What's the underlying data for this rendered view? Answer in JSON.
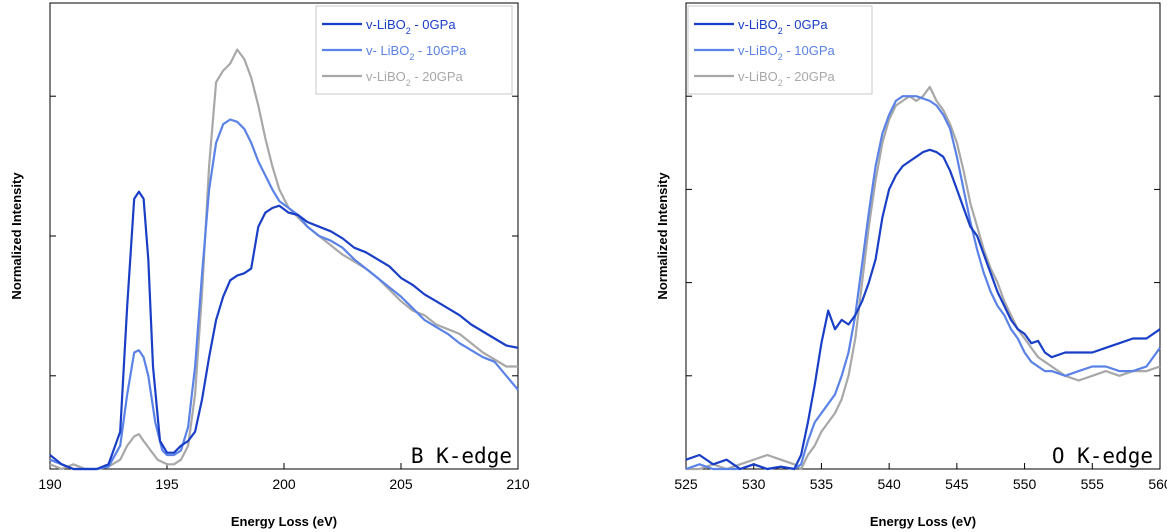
{
  "chart_data": [
    {
      "type": "line",
      "title": "",
      "annotation": "B K-edge",
      "xlabel": "Energy Loss (eV)",
      "ylabel": "Normalized Intensity",
      "xlim": [
        190,
        210
      ],
      "ylim": [
        0,
        1.0
      ],
      "xticks": [
        190,
        195,
        200,
        205,
        210
      ],
      "yticks": [
        0.2,
        0.5,
        0.8
      ],
      "grid": false,
      "legend_position": "top-right",
      "series": [
        {
          "name_main": "v-LiBO",
          "name_sub": "2",
          "name_suffix": " - 0GPa",
          "color": "#1a3fc7",
          "x": [
            190.0,
            190.5,
            191.0,
            191.5,
            192.0,
            192.5,
            193.0,
            193.3,
            193.6,
            193.8,
            194.0,
            194.2,
            194.4,
            194.7,
            195.0,
            195.3,
            195.6,
            195.9,
            196.2,
            196.5,
            196.8,
            197.1,
            197.4,
            197.7,
            198.0,
            198.3,
            198.6,
            198.9,
            199.2,
            199.5,
            199.8,
            200.2,
            200.6,
            201.0,
            201.5,
            202.0,
            202.5,
            203.0,
            203.5,
            204.0,
            204.5,
            205.0,
            205.5,
            206.0,
            206.5,
            207.0,
            207.5,
            208.0,
            208.5,
            209.0,
            209.5,
            210.0
          ],
          "y": [
            0.03,
            0.01,
            0.0,
            0.0,
            0.0,
            0.01,
            0.08,
            0.35,
            0.58,
            0.595,
            0.58,
            0.45,
            0.22,
            0.06,
            0.035,
            0.035,
            0.05,
            0.06,
            0.08,
            0.15,
            0.24,
            0.32,
            0.37,
            0.405,
            0.415,
            0.42,
            0.43,
            0.52,
            0.55,
            0.56,
            0.565,
            0.55,
            0.545,
            0.53,
            0.52,
            0.51,
            0.495,
            0.475,
            0.465,
            0.45,
            0.435,
            0.41,
            0.395,
            0.375,
            0.36,
            0.345,
            0.33,
            0.31,
            0.295,
            0.28,
            0.265,
            0.26
          ]
        },
        {
          "name_main": "v- LiBO",
          "name_sub": "2",
          "name_suffix": " - 10GPa",
          "color": "#5b82e6",
          "x": [
            190.0,
            190.5,
            191.0,
            191.5,
            192.0,
            192.5,
            193.0,
            193.3,
            193.6,
            193.8,
            194.0,
            194.2,
            194.5,
            194.8,
            195.0,
            195.3,
            195.6,
            195.9,
            196.2,
            196.5,
            196.8,
            197.1,
            197.4,
            197.7,
            198.0,
            198.3,
            198.6,
            198.9,
            199.2,
            199.5,
            199.8,
            200.2,
            200.6,
            201.0,
            201.5,
            202.0,
            202.5,
            203.0,
            203.5,
            204.0,
            204.5,
            205.0,
            205.5,
            206.0,
            206.5,
            207.0,
            207.5,
            208.0,
            208.5,
            209.0,
            209.5,
            210.0
          ],
          "y": [
            0.02,
            0.01,
            0.0,
            0.0,
            0.0,
            0.005,
            0.05,
            0.16,
            0.25,
            0.255,
            0.24,
            0.2,
            0.1,
            0.04,
            0.03,
            0.03,
            0.04,
            0.09,
            0.22,
            0.42,
            0.6,
            0.7,
            0.74,
            0.75,
            0.745,
            0.73,
            0.7,
            0.66,
            0.63,
            0.6,
            0.575,
            0.56,
            0.545,
            0.52,
            0.5,
            0.49,
            0.475,
            0.45,
            0.43,
            0.41,
            0.39,
            0.37,
            0.345,
            0.32,
            0.305,
            0.29,
            0.27,
            0.255,
            0.24,
            0.23,
            0.2,
            0.17
          ]
        },
        {
          "name_main": "v-LiBO",
          "name_sub": "2",
          "name_suffix": " - 20GPa",
          "color": "#a8a8a8",
          "x": [
            190.0,
            190.5,
            191.0,
            191.5,
            192.0,
            192.5,
            193.0,
            193.3,
            193.6,
            193.8,
            194.0,
            194.3,
            194.6,
            195.0,
            195.3,
            195.6,
            195.9,
            196.2,
            196.5,
            196.8,
            197.1,
            197.4,
            197.7,
            198.0,
            198.3,
            198.6,
            198.9,
            199.2,
            199.5,
            199.8,
            200.2,
            200.6,
            201.0,
            201.5,
            202.0,
            202.5,
            203.0,
            203.5,
            204.0,
            204.5,
            205.0,
            205.5,
            206.0,
            206.5,
            207.0,
            207.5,
            208.0,
            208.5,
            209.0,
            209.5,
            210.0
          ],
          "y": [
            0.01,
            0.0,
            0.01,
            0.0,
            0.0,
            0.005,
            0.02,
            0.05,
            0.07,
            0.075,
            0.06,
            0.04,
            0.02,
            0.01,
            0.01,
            0.02,
            0.05,
            0.16,
            0.38,
            0.65,
            0.83,
            0.855,
            0.87,
            0.9,
            0.88,
            0.84,
            0.78,
            0.71,
            0.65,
            0.6,
            0.56,
            0.54,
            0.52,
            0.5,
            0.48,
            0.46,
            0.445,
            0.43,
            0.41,
            0.385,
            0.36,
            0.34,
            0.33,
            0.31,
            0.3,
            0.29,
            0.27,
            0.25,
            0.235,
            0.22,
            0.22
          ]
        }
      ]
    },
    {
      "type": "line",
      "title": "",
      "annotation": "O K-edge",
      "xlabel": "Energy Loss (eV)",
      "ylabel": "Normalized Intensity",
      "xlim": [
        525,
        560
      ],
      "ylim": [
        0,
        1.0
      ],
      "xticks": [
        525,
        530,
        535,
        540,
        545,
        550,
        555,
        560
      ],
      "xtick_labels": [
        "525",
        "530",
        "535",
        "540",
        "545",
        "550",
        "555",
        "560"
      ],
      "yticks": [
        0.2,
        0.4,
        0.6,
        0.8
      ],
      "grid": false,
      "legend_position": "top-left",
      "series": [
        {
          "name_main": "v-LiBO",
          "name_sub": "2",
          "name_suffix": " - 0GPa",
          "color": "#1a3fc7",
          "x": [
            525,
            526,
            527,
            528,
            529,
            530,
            531,
            532,
            533,
            533.5,
            534,
            534.5,
            535,
            535.5,
            536,
            536.5,
            537,
            537.5,
            538,
            538.5,
            539,
            539.5,
            540,
            540.5,
            541,
            541.5,
            542,
            542.5,
            543,
            543.5,
            544,
            544.5,
            545,
            545.5,
            546,
            546.5,
            547,
            547.5,
            548,
            548.5,
            549,
            549.5,
            550,
            550.5,
            551,
            551.5,
            552,
            553,
            554,
            555,
            556,
            557,
            558,
            559,
            560
          ],
          "y": [
            0.02,
            0.03,
            0.01,
            0.02,
            0.0,
            0.01,
            0.0,
            0.005,
            0.0,
            0.03,
            0.1,
            0.18,
            0.27,
            0.34,
            0.3,
            0.32,
            0.31,
            0.33,
            0.36,
            0.4,
            0.45,
            0.54,
            0.6,
            0.63,
            0.65,
            0.66,
            0.67,
            0.68,
            0.685,
            0.68,
            0.67,
            0.64,
            0.6,
            0.56,
            0.52,
            0.5,
            0.46,
            0.42,
            0.38,
            0.35,
            0.32,
            0.3,
            0.29,
            0.27,
            0.275,
            0.25,
            0.24,
            0.25,
            0.25,
            0.25,
            0.26,
            0.27,
            0.28,
            0.28,
            0.3
          ]
        },
        {
          "name_main": "v-LiBO",
          "name_sub": "2",
          "name_suffix": " - 10GPa",
          "color": "#5b82e6",
          "x": [
            525,
            526,
            527,
            528,
            529,
            530,
            531,
            532,
            533,
            533.5,
            534,
            534.5,
            535,
            535.5,
            536,
            536.5,
            537,
            537.5,
            538,
            538.5,
            539,
            539.5,
            540,
            540.5,
            541,
            541.5,
            542,
            542.5,
            543,
            543.5,
            544,
            544.5,
            545,
            545.5,
            546,
            546.5,
            547,
            547.5,
            548,
            548.5,
            549,
            549.5,
            550,
            550.5,
            551,
            551.5,
            552,
            553,
            554,
            555,
            556,
            557,
            558,
            559,
            560
          ],
          "y": [
            0.0,
            0.01,
            0.0,
            0.0,
            0.0,
            0.01,
            0.0,
            0.005,
            0.0,
            0.01,
            0.06,
            0.1,
            0.12,
            0.14,
            0.16,
            0.2,
            0.25,
            0.33,
            0.44,
            0.55,
            0.65,
            0.72,
            0.76,
            0.79,
            0.8,
            0.8,
            0.8,
            0.795,
            0.79,
            0.78,
            0.76,
            0.73,
            0.67,
            0.6,
            0.53,
            0.47,
            0.42,
            0.38,
            0.35,
            0.33,
            0.3,
            0.28,
            0.25,
            0.23,
            0.22,
            0.21,
            0.21,
            0.2,
            0.21,
            0.22,
            0.22,
            0.21,
            0.21,
            0.22,
            0.26
          ]
        },
        {
          "name_main": "v-LiBO",
          "name_sub": "2",
          "name_suffix": " - 20GPa",
          "color": "#a8a8a8",
          "x": [
            525,
            526,
            527,
            528,
            529,
            530,
            531,
            532,
            533,
            533.5,
            534,
            534.5,
            535,
            535.5,
            536,
            536.5,
            537,
            537.5,
            538,
            538.5,
            539,
            539.5,
            540,
            540.5,
            541,
            541.5,
            542,
            542.5,
            543,
            543.5,
            544,
            544.5,
            545,
            545.5,
            546,
            546.5,
            547,
            547.5,
            548,
            548.5,
            549,
            549.5,
            550,
            550.5,
            551,
            551.5,
            552,
            553,
            554,
            555,
            556,
            557,
            558,
            559,
            560
          ],
          "y": [
            0.0,
            0.0,
            0.01,
            0.0,
            0.01,
            0.02,
            0.03,
            0.02,
            0.01,
            0.0,
            0.03,
            0.05,
            0.08,
            0.1,
            0.12,
            0.15,
            0.2,
            0.28,
            0.4,
            0.52,
            0.62,
            0.7,
            0.75,
            0.78,
            0.79,
            0.8,
            0.79,
            0.8,
            0.82,
            0.79,
            0.77,
            0.74,
            0.7,
            0.64,
            0.57,
            0.52,
            0.47,
            0.43,
            0.4,
            0.36,
            0.33,
            0.3,
            0.28,
            0.26,
            0.24,
            0.23,
            0.22,
            0.2,
            0.19,
            0.2,
            0.21,
            0.2,
            0.21,
            0.21,
            0.22
          ]
        }
      ]
    }
  ]
}
